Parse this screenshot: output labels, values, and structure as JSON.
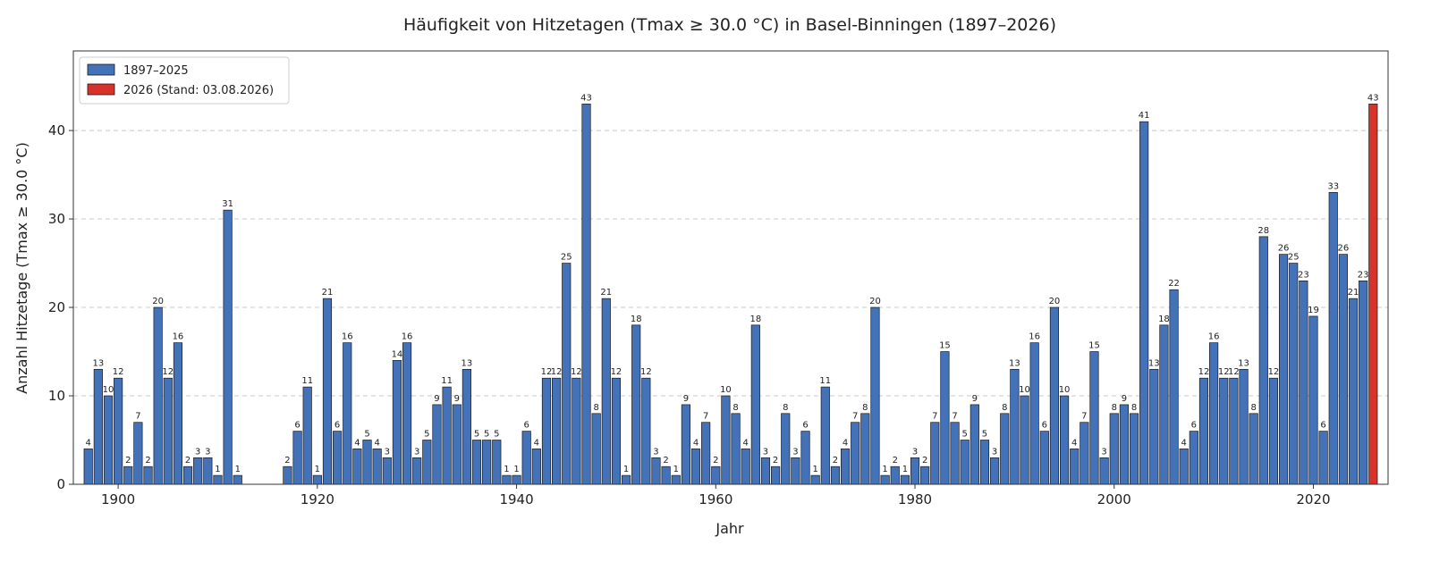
{
  "chart_data": {
    "type": "bar",
    "title": "Häufigkeit von Hitzetagen (Tmax ≥ 30.0 °C) in Basel-Binningen (1897–2026)",
    "xlabel": "Jahr",
    "ylabel": "Anzahl Hitzetage (Tmax ≥ 30.0 °C)",
    "xlim": [
      1895.5,
      2027.5
    ],
    "ylim": [
      0,
      49
    ],
    "x_ticks": [
      1900,
      1920,
      1940,
      1960,
      1980,
      2000,
      2020
    ],
    "y_ticks": [
      0,
      10,
      20,
      30,
      40
    ],
    "grid": "y-dashed",
    "legend_placement": "top-left",
    "colors": {
      "historical": "#4472b8",
      "current": "#d8322b",
      "edge": "#1a1a1a"
    },
    "series": [
      {
        "name": "1897–2025",
        "x": [
          1897,
          1898,
          1899,
          1900,
          1901,
          1902,
          1903,
          1904,
          1905,
          1906,
          1907,
          1908,
          1909,
          1910,
          1911,
          1912,
          1917,
          1918,
          1919,
          1920,
          1921,
          1922,
          1923,
          1924,
          1925,
          1926,
          1927,
          1928,
          1929,
          1930,
          1931,
          1932,
          1933,
          1934,
          1935,
          1936,
          1937,
          1938,
          1939,
          1940,
          1941,
          1942,
          1943,
          1944,
          1945,
          1946,
          1947,
          1948,
          1949,
          1950,
          1951,
          1952,
          1953,
          1954,
          1955,
          1956,
          1957,
          1958,
          1959,
          1960,
          1961,
          1962,
          1963,
          1964,
          1965,
          1966,
          1967,
          1968,
          1969,
          1970,
          1971,
          1972,
          1973,
          1974,
          1975,
          1976,
          1977,
          1978,
          1979,
          1980,
          1981,
          1982,
          1983,
          1984,
          1985,
          1986,
          1987,
          1988,
          1989,
          1990,
          1991,
          1992,
          1993,
          1994,
          1995,
          1996,
          1997,
          1998,
          1999,
          2000,
          2001,
          2002,
          2003,
          2004,
          2005,
          2006,
          2007,
          2008,
          2009,
          2010,
          2011,
          2012,
          2013,
          2014,
          2015,
          2016,
          2017,
          2018,
          2019,
          2020,
          2021,
          2022,
          2023,
          2024,
          2025
        ],
        "values": [
          4,
          13,
          10,
          12,
          2,
          7,
          2,
          20,
          12,
          16,
          2,
          3,
          3,
          1,
          31,
          1,
          2,
          6,
          11,
          1,
          21,
          6,
          16,
          4,
          5,
          4,
          3,
          14,
          16,
          3,
          5,
          9,
          11,
          9,
          13,
          5,
          5,
          5,
          1,
          1,
          6,
          4,
          12,
          12,
          25,
          12,
          43,
          8,
          21,
          12,
          1,
          18,
          12,
          3,
          2,
          1,
          9,
          4,
          7,
          2,
          10,
          8,
          4,
          18,
          3,
          2,
          8,
          3,
          6,
          1,
          11,
          2,
          4,
          7,
          8,
          20,
          1,
          2,
          1,
          3,
          2,
          7,
          15,
          7,
          5,
          9,
          5,
          3,
          8,
          13,
          10,
          16,
          6,
          20,
          10,
          4,
          7,
          15,
          3,
          8,
          9,
          8,
          41,
          13,
          18,
          22,
          4,
          6,
          12,
          16,
          12,
          12,
          13,
          8,
          28,
          12,
          26,
          25,
          23,
          19,
          6,
          33,
          26,
          21,
          23
        ]
      },
      {
        "name": "2026 (Stand: 03.08.2026)",
        "x": [
          2026
        ],
        "values": [
          43
        ]
      }
    ]
  }
}
